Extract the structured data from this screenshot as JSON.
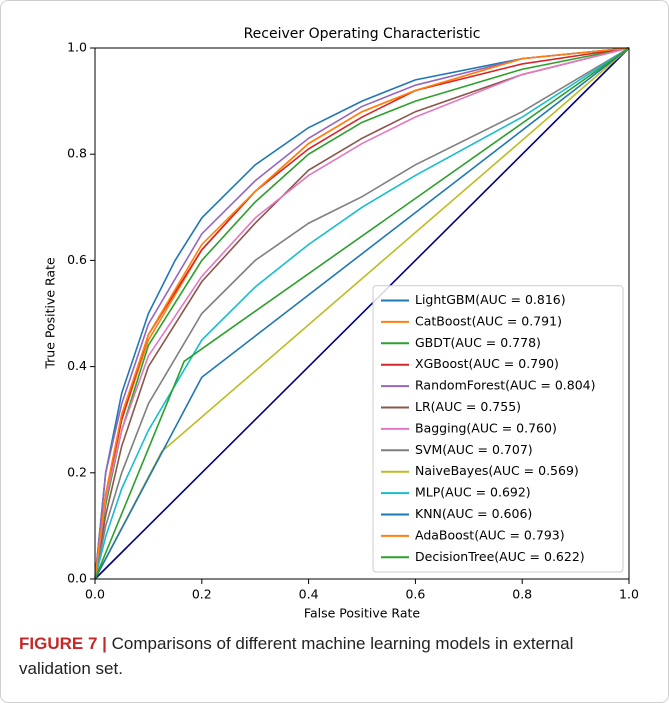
{
  "chart_data": {
    "type": "line",
    "title": "Receiver Operating Characteristic",
    "xlabel": "False Positive Rate",
    "ylabel": "True Positive Rate",
    "xlim": [
      0,
      1
    ],
    "ylim": [
      0,
      1
    ],
    "xticks": [
      {
        "value": 0,
        "label": "0.0"
      },
      0.2,
      0.4,
      0.6,
      0.8,
      {
        "value": 1,
        "label": "1.0"
      }
    ],
    "yticks": [
      {
        "value": 0,
        "label": "0.0"
      },
      0.2,
      0.4,
      0.6,
      0.8,
      {
        "value": 1,
        "label": "1.0"
      }
    ],
    "legend": "lower right",
    "reference_line": {
      "color": "#000080",
      "x": [
        0,
        1
      ],
      "values": [
        0,
        1
      ]
    },
    "series": [
      {
        "name": "LightGBM(AUC = 0.816)",
        "color": "#1f77b4",
        "x": [
          0,
          0.02,
          0.05,
          0.1,
          0.15,
          0.2,
          0.3,
          0.4,
          0.5,
          0.6,
          0.8,
          1
        ],
        "values": [
          0,
          0.2,
          0.35,
          0.5,
          0.6,
          0.68,
          0.78,
          0.85,
          0.9,
          0.94,
          0.98,
          1
        ]
      },
      {
        "name": "CatBoost(AUC = 0.791)",
        "color": "#ff7f0e",
        "x": [
          0,
          0.02,
          0.05,
          0.1,
          0.2,
          0.3,
          0.4,
          0.5,
          0.6,
          0.8,
          1
        ],
        "values": [
          0,
          0.15,
          0.3,
          0.45,
          0.62,
          0.73,
          0.82,
          0.88,
          0.92,
          0.98,
          1
        ]
      },
      {
        "name": "GBDT(AUC = 0.778)",
        "color": "#2ca02c",
        "x": [
          0,
          0.02,
          0.05,
          0.1,
          0.2,
          0.3,
          0.4,
          0.5,
          0.6,
          0.8,
          1
        ],
        "values": [
          0,
          0.14,
          0.28,
          0.44,
          0.6,
          0.71,
          0.8,
          0.86,
          0.9,
          0.96,
          1
        ]
      },
      {
        "name": "XGBoost(AUC = 0.790)",
        "color": "#d62728",
        "x": [
          0,
          0.02,
          0.05,
          0.1,
          0.2,
          0.3,
          0.4,
          0.5,
          0.6,
          0.8,
          1
        ],
        "values": [
          0,
          0.16,
          0.3,
          0.46,
          0.62,
          0.73,
          0.81,
          0.87,
          0.92,
          0.97,
          1
        ]
      },
      {
        "name": "RandomForest(AUC = 0.804)",
        "color": "#9467bd",
        "x": [
          0,
          0.02,
          0.05,
          0.1,
          0.2,
          0.3,
          0.4,
          0.5,
          0.6,
          0.8,
          1
        ],
        "values": [
          0,
          0.2,
          0.33,
          0.48,
          0.65,
          0.75,
          0.83,
          0.89,
          0.93,
          0.98,
          1
        ]
      },
      {
        "name": "LR(AUC = 0.755)",
        "color": "#8c564b",
        "x": [
          0,
          0.02,
          0.05,
          0.1,
          0.2,
          0.3,
          0.4,
          0.5,
          0.6,
          0.8,
          1
        ],
        "values": [
          0,
          0.12,
          0.25,
          0.4,
          0.56,
          0.67,
          0.77,
          0.83,
          0.88,
          0.95,
          1
        ]
      },
      {
        "name": "Bagging(AUC = 0.760)",
        "color": "#e377c2",
        "x": [
          0,
          0.02,
          0.05,
          0.1,
          0.2,
          0.3,
          0.4,
          0.5,
          0.6,
          0.8,
          1
        ],
        "values": [
          0,
          0.15,
          0.28,
          0.42,
          0.57,
          0.68,
          0.76,
          0.82,
          0.87,
          0.95,
          1
        ]
      },
      {
        "name": "SVM(AUC = 0.707)",
        "color": "#7f7f7f",
        "x": [
          0,
          0.02,
          0.05,
          0.1,
          0.2,
          0.3,
          0.4,
          0.5,
          0.6,
          0.8,
          1
        ],
        "values": [
          0,
          0.1,
          0.2,
          0.33,
          0.5,
          0.6,
          0.67,
          0.72,
          0.78,
          0.88,
          1
        ]
      },
      {
        "name": "NaiveBayes(AUC = 0.569)",
        "color": "#bcbd22",
        "x": [
          0,
          0.125,
          1
        ],
        "values": [
          0,
          0.24,
          1
        ]
      },
      {
        "name": "MLP(AUC = 0.692)",
        "color": "#17becf",
        "x": [
          0,
          0.02,
          0.05,
          0.1,
          0.2,
          0.3,
          0.4,
          0.5,
          0.6,
          0.8,
          1
        ],
        "values": [
          0,
          0.08,
          0.17,
          0.28,
          0.45,
          0.55,
          0.63,
          0.7,
          0.76,
          0.87,
          1
        ]
      },
      {
        "name": "KNN(AUC = 0.606)",
        "color": "#1f77b4",
        "x": [
          0,
          0.2,
          1
        ],
        "values": [
          0,
          0.38,
          1
        ]
      },
      {
        "name": "AdaBoost(AUC = 0.793)",
        "color": "#ff7f0e",
        "x": [
          0,
          0.02,
          0.05,
          0.1,
          0.2,
          0.3,
          0.4,
          0.5,
          0.6,
          0.8,
          1
        ],
        "values": [
          0,
          0.16,
          0.31,
          0.46,
          0.63,
          0.73,
          0.82,
          0.88,
          0.92,
          0.98,
          1
        ]
      },
      {
        "name": "DecisionTree(AUC = 0.622)",
        "color": "#2ca02c",
        "x": [
          0,
          0.167,
          1
        ],
        "values": [
          0,
          0.41,
          1
        ]
      }
    ]
  },
  "caption": {
    "label": "FIGURE 7 |",
    "text": "Comparisons of different machine learning models in external validation set."
  }
}
